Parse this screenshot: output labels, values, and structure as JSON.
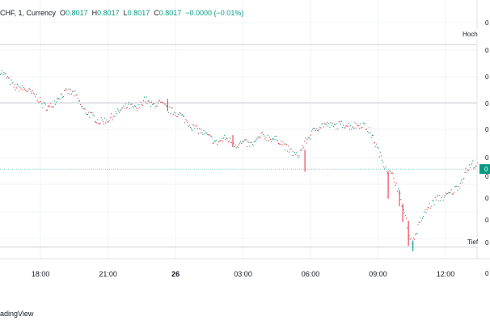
{
  "legend": {
    "symbol": "CHF, 1, Currency",
    "o_key": "O",
    "o_val": "0.8017",
    "h_key": "H",
    "h_val": "0.8017",
    "l_key": "L",
    "l_val": "0.8017",
    "c_key": "C",
    "c_val": "0.8017",
    "change": "−0.0000 (−0.01%)"
  },
  "markers": {
    "high_label": "Hoch",
    "low_label": "Tief"
  },
  "price_scale_labels": [
    "0",
    "0",
    "0",
    "0",
    "0",
    "0",
    "0",
    "0",
    "0",
    "0",
    "0"
  ],
  "footer": {
    "brand": "adingView"
  },
  "colors": {
    "up": "#089981",
    "down": "#f23645",
    "grid": "#f0f3fa",
    "last_price": "#089981",
    "hl_line": "#b2b5be",
    "text": "#131722"
  },
  "chart_data": {
    "type": "candlestick",
    "interval": "1",
    "x_tick_labels": [
      "18:00",
      "21:00",
      "26",
      "03:00",
      "06:00",
      "09:00",
      "12:00"
    ],
    "x_ticks_hours": [
      18,
      21,
      24,
      27,
      30,
      33,
      36
    ],
    "x_range_hours": [
      16.2,
      37.4
    ],
    "y_range": [
      0,
      100
    ],
    "last_price_level": 38.5,
    "high_level": 92.0,
    "low_level": 5.0,
    "mid_line_level": 67.0,
    "anchors": [
      [
        16.2,
        81
      ],
      [
        16.5,
        78
      ],
      [
        16.8,
        74
      ],
      [
        17.3,
        73
      ],
      [
        17.8,
        70
      ],
      [
        18.1,
        66
      ],
      [
        18.4,
        65
      ],
      [
        18.8,
        70
      ],
      [
        19.2,
        72
      ],
      [
        19.5,
        71
      ],
      [
        19.9,
        64
      ],
      [
        20.2,
        62
      ],
      [
        20.6,
        59
      ],
      [
        21.0,
        60
      ],
      [
        21.4,
        63
      ],
      [
        21.9,
        66
      ],
      [
        22.3,
        64
      ],
      [
        22.6,
        69
      ],
      [
        22.9,
        66
      ],
      [
        23.3,
        67
      ],
      [
        23.7,
        64
      ],
      [
        24.2,
        62
      ],
      [
        24.7,
        57
      ],
      [
        25.1,
        55
      ],
      [
        25.4,
        53
      ],
      [
        25.8,
        50
      ],
      [
        26.2,
        52
      ],
      [
        26.7,
        49
      ],
      [
        27.0,
        50
      ],
      [
        27.4,
        49
      ],
      [
        27.8,
        53
      ],
      [
        28.2,
        52
      ],
      [
        28.6,
        51
      ],
      [
        29.0,
        47
      ],
      [
        29.4,
        44
      ],
      [
        29.8,
        51
      ],
      [
        30.2,
        56
      ],
      [
        30.6,
        58
      ],
      [
        31.0,
        57
      ],
      [
        31.4,
        58
      ],
      [
        31.8,
        57
      ],
      [
        32.3,
        58
      ],
      [
        32.6,
        55
      ],
      [
        32.9,
        49
      ],
      [
        33.1,
        44
      ],
      [
        33.4,
        38
      ],
      [
        33.7,
        35
      ],
      [
        33.9,
        29
      ],
      [
        34.1,
        22
      ],
      [
        34.3,
        14
      ],
      [
        34.5,
        6
      ],
      [
        34.7,
        12
      ],
      [
        34.9,
        17
      ],
      [
        35.2,
        22
      ],
      [
        35.6,
        26
      ],
      [
        36.0,
        27
      ],
      [
        36.3,
        29
      ],
      [
        36.6,
        32
      ],
      [
        36.9,
        38
      ],
      [
        37.2,
        41
      ],
      [
        37.4,
        40
      ]
    ],
    "spikes": [
      {
        "x_hours": 23.65,
        "top": 68.6,
        "bottom": 63.4,
        "dir": "down"
      },
      {
        "x_hours": 26.55,
        "top": 53.1,
        "bottom": 47.9,
        "dir": "down"
      },
      {
        "x_hours": 29.75,
        "top": 46.8,
        "bottom": 37.4,
        "dir": "down"
      },
      {
        "x_hours": 33.45,
        "top": 37.4,
        "bottom": 25.8,
        "dir": "down"
      },
      {
        "x_hours": 33.95,
        "top": 29.2,
        "bottom": 22.6,
        "dir": "down"
      },
      {
        "x_hours": 34.1,
        "top": 23.6,
        "bottom": 15.7,
        "dir": "down"
      },
      {
        "x_hours": 34.35,
        "top": 16.3,
        "bottom": 5.5,
        "dir": "down"
      },
      {
        "x_hours": 34.55,
        "top": 7.8,
        "bottom": 3.2,
        "dir": "up"
      }
    ]
  }
}
